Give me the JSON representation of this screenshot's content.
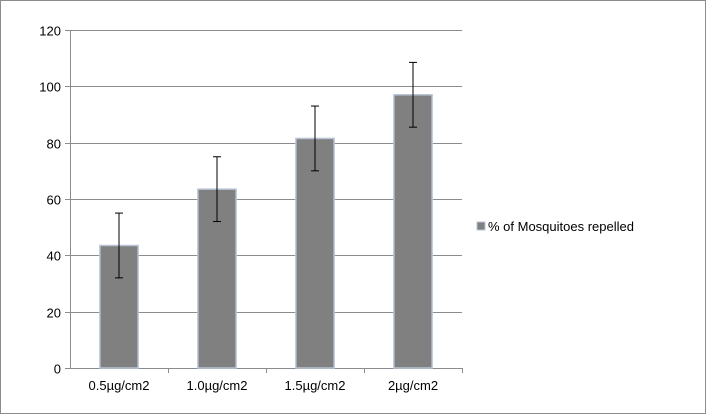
{
  "chart_data": {
    "type": "bar",
    "categories": [
      "0.5µg/cm2",
      "1.0µg/cm2",
      "1.5µg/cm2",
      "2µg/cm2"
    ],
    "series": [
      {
        "name": "% of Mosquitoes repelled",
        "values": [
          43.5,
          63.5,
          81.5,
          97
        ],
        "error": [
          11.5,
          11.5,
          11.5,
          11.5
        ]
      }
    ],
    "ylim": [
      0,
      120
    ],
    "yticks": [
      0,
      20,
      40,
      60,
      80,
      100,
      120
    ],
    "grid": true,
    "legend_position": "right",
    "colors": {
      "bar_fill": "#808080",
      "bar_stroke": "#b9c5d6",
      "gridline": "#8c8c8c",
      "axis": "#8c8c8c",
      "errorbar": "#000000",
      "frame": "#8c8c8c"
    }
  }
}
